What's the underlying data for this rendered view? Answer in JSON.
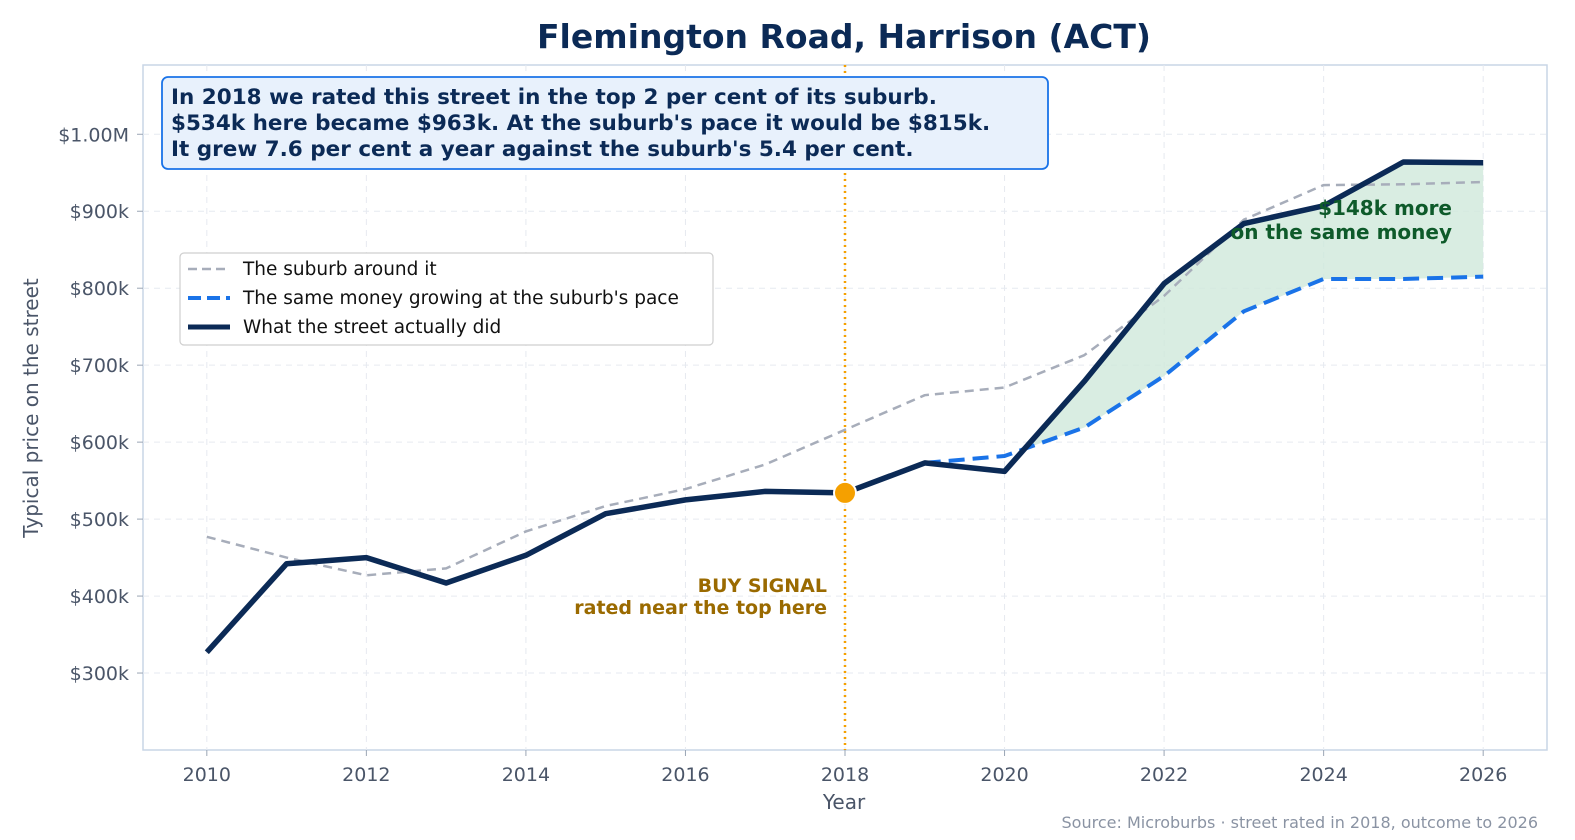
{
  "chart_data": {
    "type": "line",
    "title": "Flemington Road, Harrison (ACT)",
    "xlabel": "Year",
    "ylabel": "Typical price on the street",
    "source": "Source: Microburbs · street rated in 2018, outcome to 2026",
    "xlim": [
      2009.2,
      2026.8
    ],
    "ylim": [
      200000,
      1090000
    ],
    "x_ticks": [
      2010,
      2012,
      2014,
      2016,
      2018,
      2020,
      2022,
      2024,
      2026
    ],
    "x_tick_labels": [
      "2010",
      "2012",
      "2014",
      "2016",
      "2018",
      "2020",
      "2022",
      "2024",
      "2026"
    ],
    "y_ticks": [
      300000,
      400000,
      500000,
      600000,
      700000,
      800000,
      900000,
      1000000
    ],
    "y_tick_labels": [
      "$300k",
      "$400k",
      "$500k",
      "$600k",
      "$700k",
      "$800k",
      "$900k",
      "$1.00M"
    ],
    "grid": true,
    "legend_placement": "upper-left",
    "series": [
      {
        "name": "The suburb around it",
        "color": "#a7adba",
        "style": "dashed-thin",
        "x": [
          2010,
          2011,
          2012,
          2013,
          2014,
          2015,
          2016,
          2017,
          2018,
          2019,
          2020,
          2021,
          2022,
          2023,
          2024,
          2025,
          2026
        ],
        "values": [
          477000,
          450000,
          427000,
          436000,
          484000,
          517000,
          539000,
          571000,
          616000,
          661000,
          671000,
          713000,
          790000,
          889000,
          934000,
          935000,
          938000
        ]
      },
      {
        "name": "The same money growing at the suburb's pace",
        "color": "#1a73e8",
        "style": "dashed-thick",
        "x": [
          2019,
          2020,
          2021,
          2022,
          2023,
          2024,
          2025,
          2026
        ],
        "values": [
          573000,
          582000,
          619000,
          686000,
          770000,
          812000,
          812000,
          815000
        ]
      },
      {
        "name": "What the street actually did",
        "color": "#0b2a56",
        "style": "solid-thick",
        "x": [
          2010,
          2011,
          2012,
          2013,
          2014,
          2015,
          2016,
          2017,
          2018,
          2019,
          2020,
          2021,
          2022,
          2023,
          2024,
          2025,
          2026
        ],
        "values": [
          327000,
          442000,
          450000,
          417000,
          453000,
          507000,
          525000,
          536000,
          534000,
          573000,
          562000,
          679000,
          806000,
          884000,
          907000,
          964000,
          963000
        ]
      }
    ],
    "signal": {
      "year": 2018,
      "value": 534000,
      "line_color": "#f5a000",
      "label_line1": "BUY SIGNAL",
      "label_line2": "rated near the top here"
    },
    "gain_shading": {
      "color": "#cfe9db",
      "label_line1": "$148k more",
      "label_line2": "on the same money"
    },
    "annotation_box": {
      "lines": [
        "In 2018 we rated this street in the top 2 per cent of its suburb.",
        "$534k here became $963k. At the suburb's pace it would be $815k.",
        "It grew 7.6 per cent a year against the suburb's 5.4 per cent."
      ],
      "background": "#e8f1fc",
      "border": "#1a73e8"
    }
  }
}
